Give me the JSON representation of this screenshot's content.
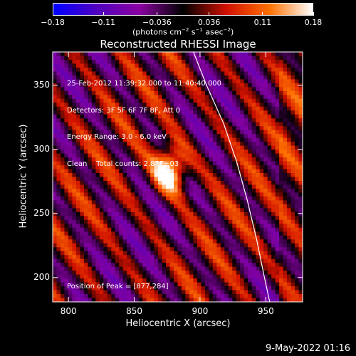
{
  "chart_data": {
    "type": "heatmap",
    "title": "Reconstructed RHESSI Image",
    "xlabel": "Heliocentric X (arcsec)",
    "ylabel": "Heliocentric Y (arcsec)",
    "xlim": [
      788,
      978
    ],
    "ylim": [
      181,
      376
    ],
    "x_ticks": [
      800,
      850,
      900,
      950
    ],
    "y_ticks": [
      200,
      250,
      300,
      350
    ],
    "colorbar": {
      "range": [
        -0.18,
        0.18
      ],
      "tick_values": [
        -0.18,
        -0.11,
        -0.036,
        0.036,
        0.11,
        0.18
      ],
      "tick_labels": [
        "−0.18",
        "−0.11",
        "−0.036",
        "0.036",
        "0.11",
        "0.18"
      ],
      "units_main": "(photons cm",
      "units_sup1": "−2",
      "units_mid": " s",
      "units_sup2": "−1",
      "units_mid2": " asec",
      "units_sup3": "−2",
      "units_end": ")",
      "colors": [
        "#0000ff",
        "#5000c0",
        "#8a00a0",
        "#000000",
        "#d01000",
        "#ff7000",
        "#ffffff"
      ]
    },
    "annotations": [
      "25-Feb-2012 11:39:32.000 to 11:40:40.000",
      "Detectors: 3F 5F 6F 7F 8F, Att 0",
      "Energy Range: 3.0 - 6.0 keV",
      "Clean    Total counts: 2.87E+03"
    ],
    "peak_label": "Position of Peak = [877,284]",
    "peak": {
      "x": 877,
      "y": 284
    },
    "limb_curve": [
      [
        895,
        376
      ],
      [
        905,
        350
      ],
      [
        918,
        320
      ],
      [
        928,
        290
      ],
      [
        936,
        260
      ],
      [
        943,
        230
      ],
      [
        949,
        200
      ],
      [
        953,
        181
      ]
    ]
  },
  "footer": {
    "timestamp": "9-May-2022 01:16"
  }
}
